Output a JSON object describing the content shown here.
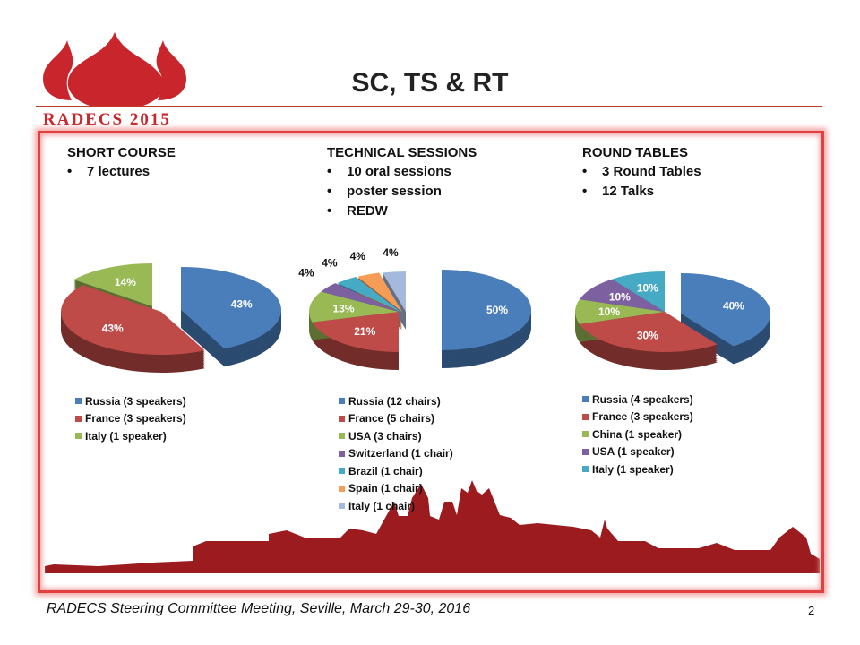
{
  "title": "SC, TS & RT",
  "logo_text": "RADECS 2015",
  "footer": "RADECS Steering Committee Meeting, Seville, March 29-30, 2016",
  "page_number": "2",
  "columns": [
    {
      "heading": "SHORT COURSE",
      "bullets": [
        "7 lectures"
      ]
    },
    {
      "heading": "TECHNICAL SESSIONS",
      "bullets": [
        "10 oral sessions",
        "poster session",
        "REDW"
      ]
    },
    {
      "heading": "ROUND TABLES",
      "bullets": [
        "3 Round Tables",
        "12 Talks"
      ]
    }
  ],
  "chart_data": [
    {
      "type": "pie",
      "style": "3d-exploded",
      "legend_position": "bottom",
      "categories": [
        "Russia (3 speakers)",
        "France (3 speakers)",
        "Italy (1 speaker)"
      ],
      "values": [
        3,
        3,
        1
      ],
      "labels": [
        "43%",
        "43%",
        "14%"
      ],
      "colors": [
        "#4a7ebb",
        "#be4b48",
        "#98b954"
      ]
    },
    {
      "type": "pie",
      "style": "3d-exploded",
      "legend_position": "bottom",
      "categories": [
        "Russia (12 chairs)",
        "France (5 chairs)",
        "USA (3 chairs)",
        "Switzerland (1 chair)",
        "Brazil (1 chair)",
        "Spain (1 chair)",
        "Italy (1 chair)"
      ],
      "values": [
        12,
        5,
        3,
        1,
        1,
        1,
        1
      ],
      "labels": [
        "50%",
        "21%",
        "13%",
        "4%",
        "4%",
        "4%",
        "4%"
      ],
      "colors": [
        "#4a7ebb",
        "#be4b48",
        "#98b954",
        "#7d60a0",
        "#46aac5",
        "#f59d56",
        "#a5b9dc"
      ]
    },
    {
      "type": "pie",
      "style": "3d-exploded",
      "legend_position": "bottom",
      "categories": [
        "Russia (4 speakers)",
        "France (3 speakers)",
        "China (1 speaker)",
        "USA (1 speaker)",
        "Italy (1 speaker)"
      ],
      "values": [
        4,
        3,
        1,
        1,
        1
      ],
      "labels": [
        "40%",
        "30%",
        "10%",
        "10%",
        "10%"
      ],
      "colors": [
        "#4a7ebb",
        "#be4b48",
        "#98b954",
        "#7d60a0",
        "#46aac5"
      ]
    }
  ]
}
